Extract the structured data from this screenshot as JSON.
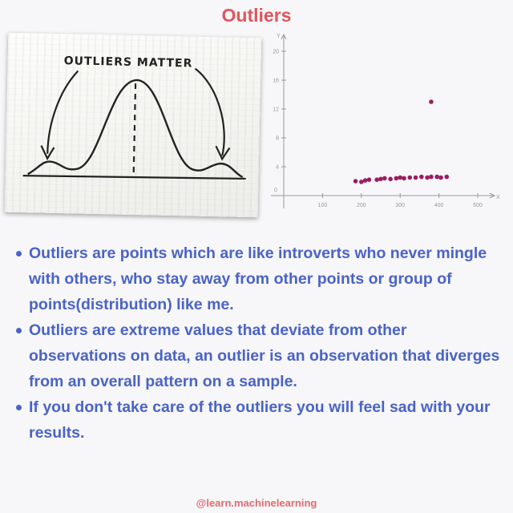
{
  "title": "Outliers",
  "napkin": {
    "caption": "OUTLIERS MATTER"
  },
  "chart_data": {
    "type": "scatter",
    "xlabel": "X",
    "ylabel": "Y",
    "xlim": [
      0,
      500
    ],
    "ylim": [
      0,
      20
    ],
    "x_ticks": [
      0,
      100,
      200,
      300,
      400,
      500
    ],
    "y_ticks": [
      0,
      4,
      8,
      12,
      16,
      20
    ],
    "x": [
      185,
      200,
      210,
      220,
      240,
      250,
      260,
      275,
      290,
      300,
      310,
      325,
      340,
      355,
      370,
      380,
      395,
      405,
      420,
      380
    ],
    "y": [
      2.0,
      1.9,
      2.1,
      2.2,
      2.2,
      2.3,
      2.4,
      2.3,
      2.4,
      2.5,
      2.4,
      2.5,
      2.5,
      2.6,
      2.5,
      2.6,
      2.6,
      2.5,
      2.6,
      13.0
    ],
    "point_color": "#9b1d63",
    "grid": false
  },
  "bullets": [
    "Outliers are points which are like introverts who never mingle with others, who stay away from other points or group of points(distribution) like me.",
    "Outliers are extreme values that deviate from other observations on data, an outlier is an observation that diverges from an overall pattern on a sample.",
    "If you don't take care of the outliers you will feel sad with your results."
  ],
  "footer": "@learn.machinelearning",
  "colors": {
    "title": "#e0555b",
    "bullet_text": "#4a63c6",
    "footer": "#e06a70"
  }
}
